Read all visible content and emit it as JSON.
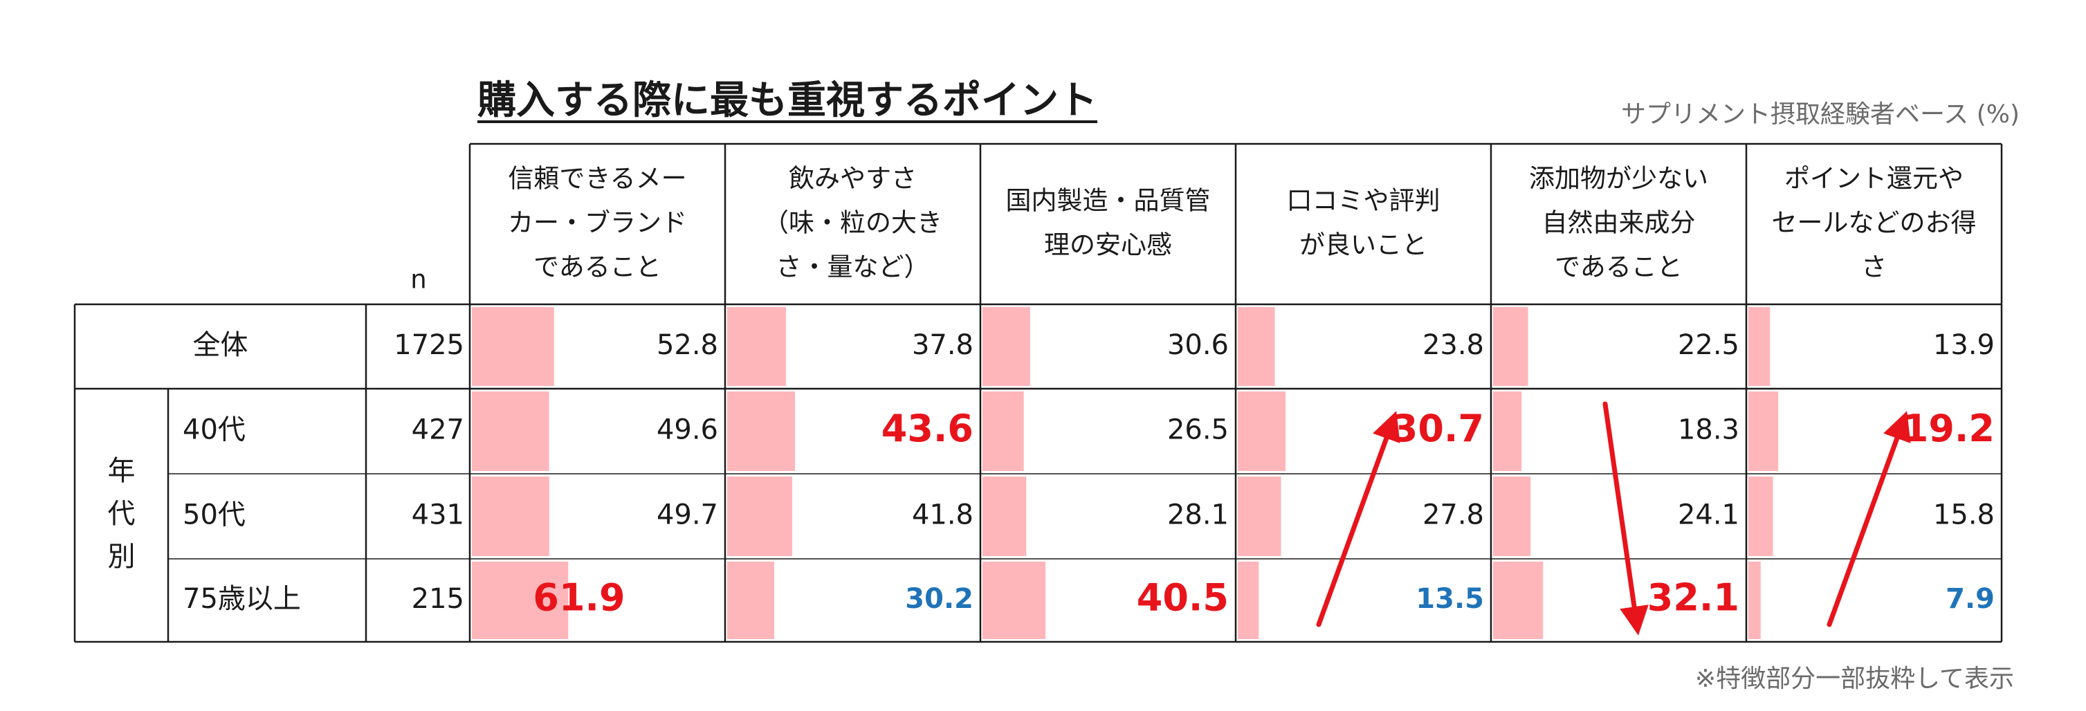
{
  "title": "購入する際に最も重視するポイント",
  "base_note": "サプリメント摂取経験者ベース (%)",
  "footnote": "※特徴部分一部抜粋して表示",
  "colors": {
    "bar": "#ffb6ba",
    "highlight_high": "#e8141b",
    "highlight_low": "#1f73b8",
    "grid": "#1a1a1a",
    "arrow": "#e8141b"
  },
  "chart_data": {
    "type": "table",
    "title": "購入する際に最も重視するポイント",
    "unit": "%",
    "n_label": "n",
    "group_label_chars": [
      "年",
      "代",
      "別"
    ],
    "columns": [
      {
        "label_lines": [
          "信頼できるメー",
          "カー・ブランド",
          "であること"
        ]
      },
      {
        "label_lines": [
          "飲みやすさ",
          "（味・粒の大き",
          "さ・量など）"
        ]
      },
      {
        "label_lines": [
          "国内製造・品質管",
          "理の安心感"
        ]
      },
      {
        "label_lines": [
          "口コミや評判",
          "が良いこと"
        ]
      },
      {
        "label_lines": [
          "添加物が少ない",
          "自然由来成分",
          "であること"
        ]
      },
      {
        "label_lines": [
          "ポイント還元や",
          "セールなどのお得",
          "さ"
        ]
      }
    ],
    "rows": [
      {
        "label": "全体",
        "n": "1725",
        "values": [
          52.8,
          37.8,
          30.6,
          23.8,
          22.5,
          13.9
        ],
        "highlight": [
          "",
          "",
          "",
          "",
          "",
          ""
        ]
      },
      {
        "label": "40代",
        "n": "427",
        "values": [
          49.6,
          43.6,
          26.5,
          30.7,
          18.3,
          19.2
        ],
        "highlight": [
          "",
          "high",
          "",
          "high",
          "",
          "high"
        ]
      },
      {
        "label": "50代",
        "n": "431",
        "values": [
          49.7,
          41.8,
          28.1,
          27.8,
          24.1,
          15.8
        ],
        "highlight": [
          "",
          "",
          "",
          "",
          "",
          ""
        ]
      },
      {
        "label": "75歳以上",
        "n": "215",
        "values": [
          61.9,
          30.2,
          40.5,
          13.5,
          32.1,
          7.9
        ],
        "highlight": [
          "high",
          "low",
          "high",
          "low",
          "high",
          "low"
        ]
      }
    ],
    "arrows": [
      {
        "column": 3,
        "from_row": 3,
        "to_row": 1,
        "direction": "up"
      },
      {
        "column": 4,
        "from_row": 1,
        "to_row": 3,
        "direction": "down"
      },
      {
        "column": 5,
        "from_row": 3,
        "to_row": 1,
        "direction": "up"
      }
    ],
    "grid": true
  }
}
